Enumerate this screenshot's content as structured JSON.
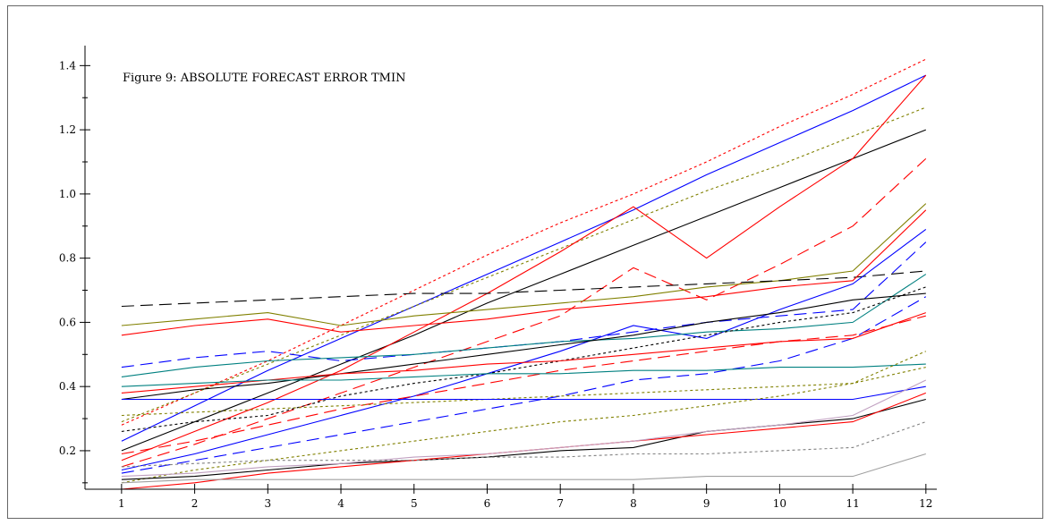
{
  "chart_data": {
    "type": "line",
    "title": "Figure 9: ABSOLUTE FORECAST ERROR TMIN",
    "xlabel": "",
    "ylabel": "",
    "x": [
      1,
      2,
      3,
      4,
      5,
      6,
      7,
      8,
      9,
      10,
      11,
      12
    ],
    "xlim": [
      0.5,
      12.1
    ],
    "ylim": [
      0.08,
      1.44
    ],
    "yticks": [
      0.2,
      0.4,
      0.6,
      0.8,
      1.0,
      1.2,
      1.4
    ],
    "ytick_labels": [
      "0.2",
      "0.4",
      "0.6",
      "0.8",
      "1.0",
      "1.2",
      "1.4"
    ],
    "xtick_labels": [
      "1",
      "2",
      "3",
      "4",
      "5",
      "6",
      "7",
      "8",
      "9",
      "10",
      "11",
      "12"
    ],
    "grid": false,
    "legend": "none",
    "series": [
      {
        "color": "#ff0000",
        "dash": "3,3",
        "values": [
          0.28,
          0.38,
          0.48,
          0.59,
          0.7,
          0.81,
          0.91,
          1.0,
          1.1,
          1.21,
          1.31,
          1.42
        ]
      },
      {
        "color": "#0000ff",
        "dash": "",
        "values": [
          0.23,
          0.34,
          0.45,
          0.55,
          0.65,
          0.75,
          0.85,
          0.95,
          1.06,
          1.16,
          1.26,
          1.37
        ]
      },
      {
        "color": "#808000",
        "dash": "3,3",
        "values": [
          0.29,
          0.38,
          0.47,
          0.56,
          0.65,
          0.74,
          0.83,
          0.92,
          1.01,
          1.09,
          1.18,
          1.27
        ]
      },
      {
        "color": "#000000",
        "dash": "",
        "values": [
          0.2,
          0.29,
          0.38,
          0.47,
          0.56,
          0.66,
          0.75,
          0.84,
          0.93,
          1.02,
          1.11,
          1.2
        ]
      },
      {
        "color": "#ff0000",
        "dash": "",
        "values": [
          0.17,
          0.26,
          0.35,
          0.45,
          0.57,
          0.69,
          0.82,
          0.96,
          0.8,
          0.96,
          1.11,
          1.37
        ]
      },
      {
        "color": "#ff0000",
        "dash": "14,7",
        "values": [
          0.15,
          0.22,
          0.3,
          0.38,
          0.46,
          0.54,
          0.62,
          0.77,
          0.67,
          0.78,
          0.9,
          1.11
        ]
      },
      {
        "color": "#808000",
        "dash": "",
        "values": [
          0.59,
          0.61,
          0.63,
          0.59,
          0.62,
          0.64,
          0.66,
          0.68,
          0.71,
          0.73,
          0.76,
          0.97
        ]
      },
      {
        "color": "#000000",
        "dash": "14,7",
        "values": [
          0.65,
          0.66,
          0.67,
          0.68,
          0.69,
          0.69,
          0.7,
          0.71,
          0.72,
          0.73,
          0.74,
          0.76
        ]
      },
      {
        "color": "#ff0000",
        "dash": "",
        "values": [
          0.56,
          0.59,
          0.61,
          0.57,
          0.59,
          0.61,
          0.64,
          0.66,
          0.68,
          0.71,
          0.73,
          0.95
        ]
      },
      {
        "color": "#0000ff",
        "dash": "",
        "values": [
          0.14,
          0.19,
          0.25,
          0.31,
          0.37,
          0.44,
          0.51,
          0.59,
          0.55,
          0.64,
          0.72,
          0.89
        ]
      },
      {
        "color": "#0000ff",
        "dash": "14,7",
        "values": [
          0.46,
          0.49,
          0.51,
          0.48,
          0.5,
          0.52,
          0.54,
          0.57,
          0.6,
          0.62,
          0.64,
          0.85
        ]
      },
      {
        "color": "#008080",
        "dash": "",
        "values": [
          0.43,
          0.46,
          0.48,
          0.49,
          0.5,
          0.52,
          0.54,
          0.55,
          0.57,
          0.58,
          0.6,
          0.75
        ]
      },
      {
        "color": "#000000",
        "dash": "",
        "values": [
          0.36,
          0.39,
          0.41,
          0.44,
          0.47,
          0.5,
          0.53,
          0.56,
          0.6,
          0.63,
          0.67,
          0.69
        ]
      },
      {
        "color": "#000000",
        "dash": "3,3",
        "values": [
          0.26,
          0.29,
          0.31,
          0.37,
          0.41,
          0.44,
          0.48,
          0.52,
          0.56,
          0.6,
          0.63,
          0.71
        ]
      },
      {
        "color": "#0000ff",
        "dash": "14,7",
        "values": [
          0.13,
          0.17,
          0.21,
          0.25,
          0.29,
          0.33,
          0.37,
          0.42,
          0.44,
          0.48,
          0.55,
          0.68
        ]
      },
      {
        "color": "#ff0000",
        "dash": "",
        "values": [
          0.38,
          0.4,
          0.42,
          0.44,
          0.45,
          0.47,
          0.48,
          0.5,
          0.52,
          0.54,
          0.55,
          0.63
        ]
      },
      {
        "color": "#ff0000",
        "dash": "14,7",
        "values": [
          0.19,
          0.23,
          0.28,
          0.33,
          0.37,
          0.41,
          0.45,
          0.48,
          0.51,
          0.54,
          0.56,
          0.62
        ]
      },
      {
        "color": "#008080",
        "dash": "",
        "values": [
          0.4,
          0.41,
          0.42,
          0.42,
          0.43,
          0.44,
          0.44,
          0.45,
          0.45,
          0.46,
          0.46,
          0.47
        ]
      },
      {
        "color": "#808000",
        "dash": "3,3",
        "values": [
          0.31,
          0.32,
          0.33,
          0.34,
          0.35,
          0.36,
          0.37,
          0.38,
          0.39,
          0.4,
          0.41,
          0.51
        ]
      },
      {
        "color": "#0000ff",
        "dash": "",
        "values": [
          0.36,
          0.36,
          0.36,
          0.36,
          0.36,
          0.36,
          0.36,
          0.36,
          0.36,
          0.36,
          0.36,
          0.4
        ]
      },
      {
        "color": "#808000",
        "dash": "3,3",
        "values": [
          0.1,
          0.14,
          0.17,
          0.2,
          0.23,
          0.26,
          0.29,
          0.31,
          0.34,
          0.37,
          0.41,
          0.46
        ]
      },
      {
        "color": "#000000",
        "dash": "",
        "values": [
          0.11,
          0.12,
          0.14,
          0.16,
          0.17,
          0.18,
          0.2,
          0.21,
          0.26,
          0.28,
          0.3,
          0.36
        ]
      },
      {
        "color": "#ff0000",
        "dash": "",
        "values": [
          0.08,
          0.1,
          0.13,
          0.15,
          0.17,
          0.19,
          0.21,
          0.23,
          0.25,
          0.27,
          0.29,
          0.38
        ]
      },
      {
        "color": "#c0a0c0",
        "dash": "",
        "values": [
          0.12,
          0.13,
          0.15,
          0.16,
          0.18,
          0.19,
          0.21,
          0.23,
          0.26,
          0.28,
          0.31,
          0.42
        ]
      },
      {
        "color": "#808080",
        "dash": "3,3",
        "values": [
          0.15,
          0.16,
          0.17,
          0.17,
          0.17,
          0.18,
          0.18,
          0.19,
          0.19,
          0.2,
          0.21,
          0.29
        ]
      },
      {
        "color": "#a0a0a0",
        "dash": "",
        "values": [
          0.1,
          0.11,
          0.11,
          0.11,
          0.11,
          0.11,
          0.11,
          0.11,
          0.12,
          0.12,
          0.12,
          0.19
        ]
      }
    ]
  }
}
